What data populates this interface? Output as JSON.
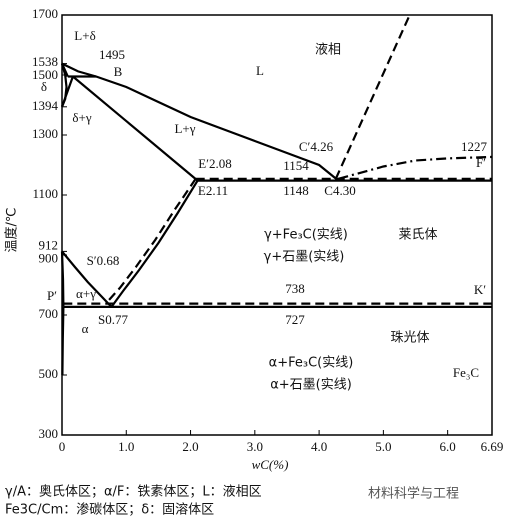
{
  "chart_data": {
    "type": "line",
    "xlabel": "wC(%)",
    "ylabel": "温度/℃",
    "xlim": [
      0,
      6.69
    ],
    "ylim": [
      300,
      1700
    ],
    "xticks": [
      0,
      {
        "value": 1,
        "label": "1.0"
      },
      {
        "value": 2,
        "label": "2.0"
      },
      {
        "value": 3,
        "label": "3.0"
      },
      {
        "value": 4,
        "label": "4.0"
      },
      {
        "value": 5,
        "label": "5.0"
      },
      {
        "value": 6,
        "label": "6.0"
      },
      6.69
    ],
    "yticks": [
      300,
      500,
      700,
      900,
      912,
      1100,
      1300,
      1394,
      1500,
      1538,
      1700
    ],
    "series": [
      {
        "color": "#000000",
        "dash": "solid",
        "x": [
          0,
          0.25,
          0.53,
          1.0,
          1.5,
          2.0,
          2.5,
          3.0,
          3.5,
          4.0,
          4.3
        ],
        "values": [
          1538,
          1512,
          1495,
          1460,
          1410,
          1360,
          1320,
          1280,
          1240,
          1200,
          1148
        ]
      },
      {
        "color": "#000000",
        "dash": "solid",
        "x": [
          0,
          0.09
        ],
        "values": [
          1538,
          1495
        ]
      },
      {
        "color": "#000000",
        "dash": "solid",
        "x": [
          0,
          0.05,
          0.07,
          0.05,
          0
        ],
        "values": [
          1538,
          1500,
          1460,
          1420,
          1394
        ]
      },
      {
        "color": "#000000",
        "dash": "solid",
        "x": [
          0.09,
          0.53
        ],
        "values": [
          1495,
          1495
        ]
      },
      {
        "color": "#000000",
        "dash": "solid",
        "x": [
          0,
          0.17
        ],
        "values": [
          1394,
          1495
        ]
      },
      {
        "color": "#000000",
        "dash": "solid",
        "x": [
          0.17,
          2.11
        ],
        "values": [
          1495,
          1148
        ]
      },
      {
        "color": "#000000",
        "dash": "solid",
        "x": [
          2.11,
          6.69
        ],
        "values": [
          1148,
          1148
        ]
      },
      {
        "color": "#000000",
        "dash": "dashed",
        "x": [
          2.08,
          6.69
        ],
        "values": [
          1154,
          1154
        ]
      },
      {
        "color": "#000000",
        "dash": "solid",
        "x": [
          2.11,
          1.8,
          1.5,
          1.2,
          0.95,
          0.77
        ],
        "values": [
          1148,
          1040,
          940,
          850,
          780,
          727
        ]
      },
      {
        "color": "#000000",
        "dash": "dashed",
        "x": [
          2.08,
          1.75,
          1.45,
          1.15,
          0.9,
          0.68
        ],
        "values": [
          1154,
          1050,
          950,
          860,
          790,
          738
        ]
      },
      {
        "color": "#000000",
        "dash": "solid",
        "x": [
          0,
          0.2,
          0.4,
          0.6,
          0.77
        ],
        "values": [
          912,
          860,
          810,
          765,
          727
        ]
      },
      {
        "color": "#000000",
        "dash": "solid",
        "x": [
          0,
          0.015,
          0.0218
        ],
        "values": [
          912,
          820,
          727
        ]
      },
      {
        "color": "#000000",
        "dash": "solid",
        "x": [
          0.0218,
          6.69
        ],
        "values": [
          727,
          727
        ]
      },
      {
        "color": "#000000",
        "dash": "dashed",
        "x": [
          0.02,
          6.69
        ],
        "values": [
          738,
          738
        ]
      },
      {
        "color": "#000000",
        "dash": "solid",
        "x": [
          0.0218,
          0.012,
          0.006
        ],
        "values": [
          727,
          620,
          500
        ]
      },
      {
        "color": "#000000",
        "dash": "dashed",
        "x": [
          4.26,
          5.41
        ],
        "values": [
          1154,
          1700
        ]
      },
      {
        "color": "#000000",
        "dash": "dashdot",
        "x": [
          4.3,
          5.0,
          5.5,
          6.0,
          6.69
        ],
        "values": [
          1154,
          1195,
          1215,
          1222,
          1227
        ]
      }
    ],
    "annotations": [
      "L+δ",
      "1495",
      "B",
      "液相",
      "L",
      "δ+γ",
      "L+γ",
      "C′4.26",
      "1227",
      "E′2.08",
      "1154",
      "F′",
      "E2.11",
      "1148",
      "C4.30",
      "γ+Fe₃C(实线)",
      "γ+石墨(实线)",
      "莱氏体",
      "S′0.68",
      "α+γ",
      "738",
      "K′",
      "S0.77",
      "727",
      "α",
      "珠光体",
      "α+Fe₃C(实线)",
      "α+石墨(实线)",
      "Fe₃C",
      "P′",
      "δ"
    ]
  },
  "footer": {
    "lines": [
      "γ/A：奥氏体区；α/F：铁素体区；L：液相区",
      "Fe3C/Cm：渗碳体区；δ：固溶体区"
    ],
    "watermark": "材料科学与工程"
  }
}
